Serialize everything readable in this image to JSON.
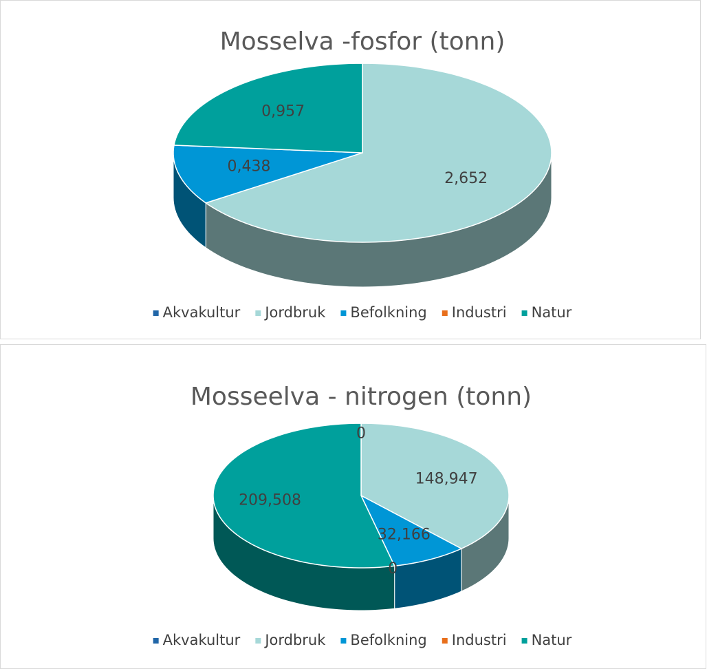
{
  "chart_data": [
    {
      "type": "pie",
      "title": "Mosselva -fosfor (tonn)",
      "categories": [
        "Akvakultur",
        "Jordbruk",
        "Befolkning",
        "Industri",
        "Natur"
      ],
      "values": [
        0,
        2.652,
        0.438,
        0,
        0.957
      ],
      "value_labels": [
        null,
        "2,652",
        "0,438",
        null,
        "0,957"
      ],
      "colors": [
        "#2166a8",
        "#a6d8d8",
        "#0096d6",
        "#e86f1c",
        "#00a09c"
      ],
      "legend": "bottom"
    },
    {
      "type": "pie",
      "title": "Mosseelva - nitrogen (tonn)",
      "categories": [
        "Akvakultur",
        "Jordbruk",
        "Befolkning",
        "Industri",
        "Natur"
      ],
      "values": [
        0,
        148.947,
        32.166,
        0,
        209.508
      ],
      "value_labels": [
        "0",
        "148,947",
        "32,166",
        "0",
        "209,508"
      ],
      "colors": [
        "#2166a8",
        "#a6d8d8",
        "#0096d6",
        "#e86f1c",
        "#00a09c"
      ],
      "legend": "bottom"
    }
  ]
}
